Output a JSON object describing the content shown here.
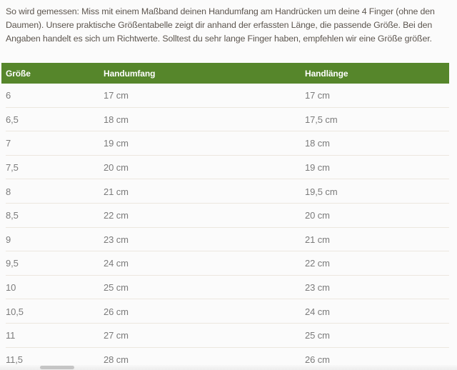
{
  "intro": {
    "text": "So wird gemessen: Miss mit einem Maßband deinen Handumfang am Handrücken um deine 4 Finger (ohne den Daumen). Unsere praktische Größentabelle zeigt dir anhand der erfassten Länge, die passende Größe. Bei den Angaben handelt es sich um Richtwerte. Solltest du sehr lange Finger haben, empfehlen wir eine Größe größer."
  },
  "table": {
    "headers": [
      "Größe",
      "Handumfang",
      "Handlänge"
    ],
    "rows": [
      [
        "6",
        "17 cm",
        "17 cm"
      ],
      [
        "6,5",
        "18 cm",
        "17,5 cm"
      ],
      [
        "7",
        "19 cm",
        "18 cm"
      ],
      [
        "7,5",
        "20 cm",
        "19 cm"
      ],
      [
        "8",
        "21 cm",
        "19,5 cm"
      ],
      [
        "8,5",
        "22 cm",
        "20 cm"
      ],
      [
        "9",
        "23 cm",
        "21 cm"
      ],
      [
        "9,5",
        "24 cm",
        "22 cm"
      ],
      [
        "10",
        "25 cm",
        "23 cm"
      ],
      [
        "10,5",
        "26 cm",
        "24 cm"
      ],
      [
        "11",
        "27 cm",
        "25 cm"
      ],
      [
        "11,5",
        "28 cm",
        "26 cm"
      ]
    ]
  },
  "colors": {
    "header_bg": "#56862b",
    "header_text": "#ffffff",
    "body_text": "#5d564f",
    "row_text": "#7b7b7b",
    "divider": "#ece7df",
    "page_bg": "#fbfbfb",
    "scrollbar_track": "#ededed",
    "scrollbar_thumb": "#c5c5c5"
  }
}
